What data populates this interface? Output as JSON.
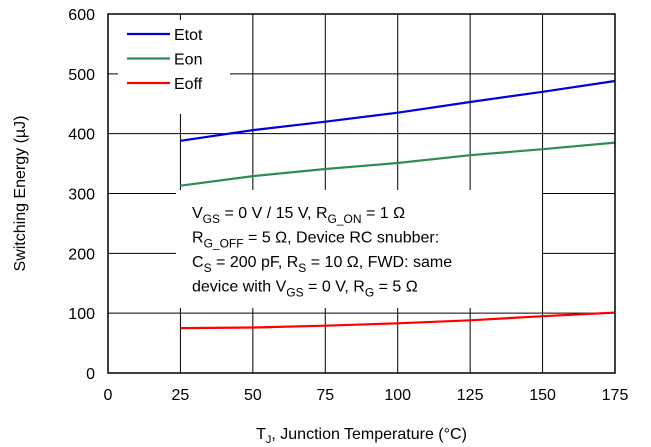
{
  "chart_data": {
    "type": "line",
    "title": "",
    "xlabel": "T",
    "xlabel_sub": "J",
    "xlabel_rest": ", Junction Temperature (°C)",
    "ylabel": "Switching Energy (µJ)",
    "xlim": [
      0,
      175
    ],
    "ylim": [
      0,
      600
    ],
    "xticks": [
      0,
      25,
      50,
      75,
      100,
      125,
      150,
      175
    ],
    "yticks": [
      0,
      100,
      200,
      300,
      400,
      500,
      600
    ],
    "grid": true,
    "legend_position": "top-left",
    "series": [
      {
        "name": "Etot",
        "color": "#0000dd",
        "x": [
          25,
          50,
          75,
          100,
          125,
          150,
          175
        ],
        "y": [
          388,
          406,
          420,
          435,
          453,
          470,
          488
        ]
      },
      {
        "name": "Eon",
        "color": "#2e8b57",
        "x": [
          25,
          50,
          75,
          100,
          125,
          150,
          175
        ],
        "y": [
          313,
          329,
          341,
          351,
          364,
          374,
          385
        ]
      },
      {
        "name": "Eoff",
        "color": "#ff0000",
        "x": [
          25,
          50,
          75,
          100,
          125,
          150,
          175
        ],
        "y": [
          75,
          76,
          79,
          83,
          88,
          95,
          101
        ]
      }
    ],
    "annotation_lines": [
      [
        {
          "t": "V"
        },
        {
          "t": "GS",
          "sub": true
        },
        {
          "t": " = 0 V / 15 V, R"
        },
        {
          "t": "G_ON",
          "sub": true
        },
        {
          "t": " = 1 Ω"
        }
      ],
      [
        {
          "t": "R"
        },
        {
          "t": "G_OFF",
          "sub": true
        },
        {
          "t": " = 5 Ω, Device RC snubber:"
        }
      ],
      [
        {
          "t": "C"
        },
        {
          "t": "S",
          "sub": true
        },
        {
          "t": " = 200 pF, R"
        },
        {
          "t": "S",
          "sub": true
        },
        {
          "t": " = 10 Ω, FWD: same"
        }
      ],
      [
        {
          "t": "device with V"
        },
        {
          "t": "GS",
          "sub": true
        },
        {
          "t": " = 0 V, R"
        },
        {
          "t": "G",
          "sub": true
        },
        {
          "t": " = 5 Ω"
        }
      ]
    ]
  }
}
